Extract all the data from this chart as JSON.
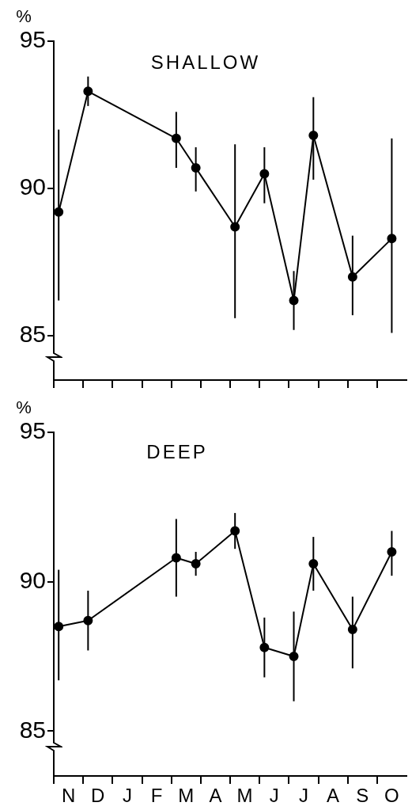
{
  "chart_data": [
    {
      "type": "line",
      "title": "SHALLOW",
      "ylabel": "%",
      "marker": "circle",
      "grid": false,
      "legend": false,
      "tick_labels": "y",
      "categories": [
        null,
        null,
        null,
        null,
        null,
        null,
        null,
        null,
        null,
        null,
        null,
        null,
        null,
        null,
        null,
        null,
        null,
        null,
        null,
        null,
        null,
        null,
        null,
        null,
        null,
        null,
        null,
        null,
        null,
        null,
        null,
        null,
        null,
        null,
        null,
        null
      ],
      "series": [
        {
          "color": "#000000",
          "values": [
            89.2,
            null,
            null,
            93.3,
            null,
            null,
            null,
            null,
            null,
            null,
            null,
            null,
            91.7,
            null,
            90.7,
            null,
            null,
            null,
            88.7,
            null,
            null,
            90.5,
            null,
            null,
            86.2,
            null,
            91.8,
            null,
            null,
            null,
            87.0,
            null,
            null,
            null,
            88.3,
            null
          ],
          "errors": [
            [
              86.2,
              92.0
            ],
            null,
            null,
            [
              92.8,
              93.8
            ],
            null,
            null,
            null,
            null,
            null,
            null,
            null,
            null,
            [
              90.7,
              92.6
            ],
            null,
            [
              89.9,
              91.4
            ],
            null,
            null,
            null,
            [
              85.6,
              91.5
            ],
            null,
            null,
            [
              89.5,
              91.4
            ],
            null,
            null,
            [
              85.2,
              87.2
            ],
            null,
            [
              90.3,
              93.1
            ],
            null,
            null,
            null,
            [
              85.7,
              88.4
            ],
            null,
            null,
            null,
            [
              85.1,
              91.7
            ],
            null
          ]
        }
      ],
      "ylim": [
        83.5,
        95
      ],
      "yticks": [
        85,
        90,
        95
      ]
    },
    {
      "type": "line",
      "title": "DEEP",
      "ylabel": "%",
      "marker": "circle",
      "grid": false,
      "legend": false,
      "categories": [
        null,
        "N",
        null,
        null,
        "D",
        null,
        null,
        "J",
        null,
        null,
        "F",
        null,
        null,
        "M",
        null,
        null,
        "A",
        null,
        null,
        "M",
        null,
        null,
        "J",
        null,
        null,
        "J",
        null,
        null,
        "A",
        null,
        null,
        "S",
        null,
        null,
        "O",
        null
      ],
      "series": [
        {
          "color": "#000000",
          "values": [
            88.5,
            null,
            null,
            88.7,
            null,
            null,
            null,
            null,
            null,
            null,
            null,
            null,
            90.8,
            null,
            90.6,
            null,
            null,
            null,
            91.7,
            null,
            null,
            87.8,
            null,
            null,
            87.5,
            null,
            90.6,
            null,
            null,
            null,
            88.4,
            null,
            null,
            null,
            91.0,
            null
          ],
          "errors": [
            [
              86.7,
              90.4
            ],
            null,
            null,
            [
              87.7,
              89.7
            ],
            null,
            null,
            null,
            null,
            null,
            null,
            null,
            null,
            [
              89.5,
              92.1
            ],
            null,
            [
              90.2,
              91.0
            ],
            null,
            null,
            null,
            [
              91.1,
              92.3
            ],
            null,
            null,
            [
              86.8,
              88.8
            ],
            null,
            null,
            [
              86.0,
              89.0
            ],
            null,
            [
              89.7,
              91.5
            ],
            null,
            null,
            null,
            [
              87.1,
              89.5
            ],
            null,
            null,
            null,
            [
              90.2,
              91.7
            ],
            null
          ]
        }
      ],
      "ylim": [
        83.5,
        95
      ],
      "yticks": [
        85,
        90,
        95
      ]
    }
  ]
}
